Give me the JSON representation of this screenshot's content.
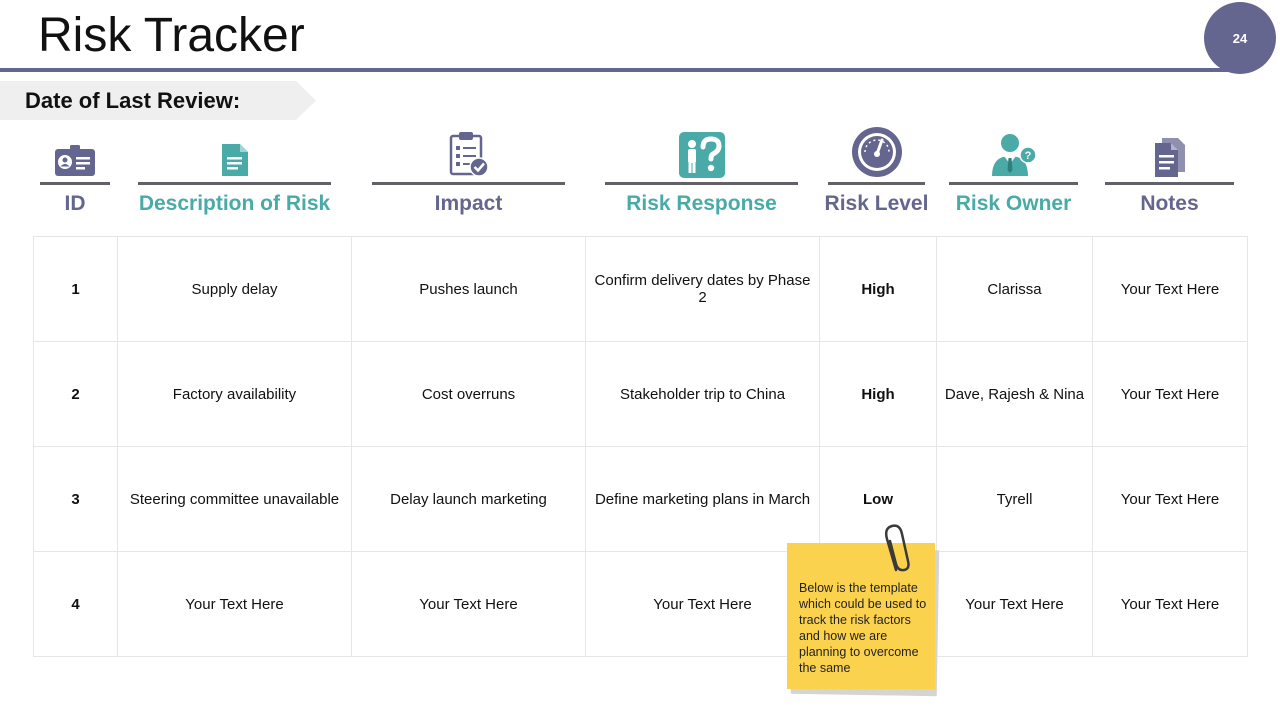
{
  "title": "Risk Tracker",
  "page_number": "24",
  "review_label": "Date of Last Review:",
  "columns": [
    {
      "label": "ID",
      "icon": "id-card-icon"
    },
    {
      "label": "Description of Risk",
      "icon": "document-icon"
    },
    {
      "label": "Impact",
      "icon": "clipboard-checklist-icon"
    },
    {
      "label": "Risk Response",
      "icon": "person-question-icon"
    },
    {
      "label": "Risk Level",
      "icon": "gauge-icon"
    },
    {
      "label": "Risk Owner",
      "icon": "businessman-question-icon"
    },
    {
      "label": "Notes",
      "icon": "notes-icon"
    }
  ],
  "rows": [
    {
      "id": "1",
      "description": "Supply delay",
      "impact": "Pushes launch",
      "response": "Confirm delivery dates by Phase 2",
      "level": "High",
      "owner": "Clarissa",
      "notes": "Your Text Here"
    },
    {
      "id": "2",
      "description": "Factory availability",
      "impact": "Cost overruns",
      "response": "Stakeholder trip to China",
      "level": "High",
      "owner": "Dave, Rajesh & Nina",
      "notes": "Your Text Here"
    },
    {
      "id": "3",
      "description": "Steering committee unavailable",
      "impact": "Delay launch marketing",
      "response": "Define marketing plans in March",
      "level": "Low",
      "owner": "Tyrell",
      "notes": "Your Text Here"
    },
    {
      "id": "4",
      "description": "Your Text Here",
      "impact": "Your Text Here",
      "response": "Your Text Here",
      "level": "",
      "owner": "Your Text Here",
      "notes": "Your Text Here"
    }
  ],
  "sticky_note": {
    "text": "Below is the template which could be used to track the risk factors and how we are planning to overcome the same",
    "icon": "paperclip-icon"
  },
  "colors": {
    "slate": "#65668f",
    "teal": "#4aaaa8",
    "rule": "#616166",
    "sticky": "#fbd24e"
  }
}
